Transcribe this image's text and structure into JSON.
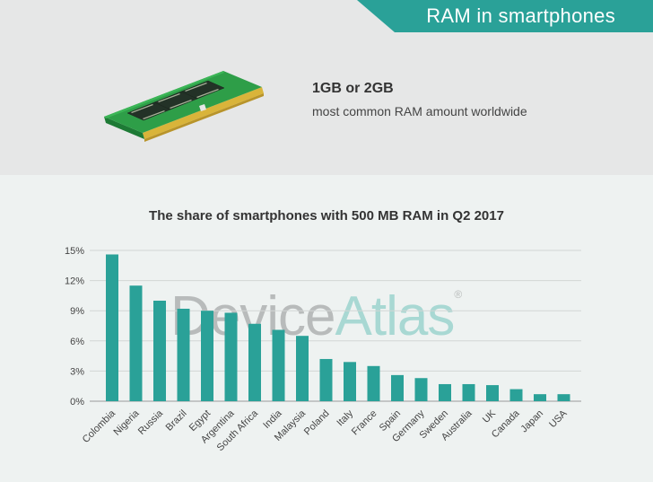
{
  "header": {
    "banner_title": "RAM in smartphones",
    "ram_stat": "1GB or 2GB",
    "ram_stat_description": "most common RAM amount worldwide"
  },
  "icons": {
    "ram_module": "ram-module-icon"
  },
  "colors": {
    "accent": "#2aa198",
    "bar": "#2aa198",
    "header_bg": "#e6e7e7",
    "chart_bg": "#eef2f1"
  },
  "watermark": {
    "part1": "Device",
    "part2": "Atlas",
    "mark": "®"
  },
  "chart_data": {
    "type": "bar",
    "title": "The share of smartphones with 500 MB RAM in Q2 2017",
    "xlabel": "",
    "ylabel": "",
    "categories": [
      "Colombia",
      "Nigeria",
      "Russia",
      "Brazil",
      "Egypt",
      "Argentina",
      "South Africa",
      "India",
      "Malaysia",
      "Poland",
      "Italy",
      "France",
      "Spain",
      "Germany",
      "Sweden",
      "Australia",
      "UK",
      "Canada",
      "Japan",
      "USA"
    ],
    "values": [
      14.6,
      11.5,
      10.0,
      9.2,
      9.0,
      8.8,
      7.7,
      7.1,
      6.5,
      4.2,
      3.9,
      3.5,
      2.6,
      2.3,
      1.7,
      1.7,
      1.6,
      1.2,
      0.7,
      0.7
    ],
    "ylim": [
      0,
      15
    ],
    "yticks": [
      0,
      3,
      6,
      9,
      12,
      15
    ],
    "ytick_labels": [
      "0%",
      "3%",
      "6%",
      "9%",
      "12%",
      "15%"
    ],
    "grid": true
  }
}
